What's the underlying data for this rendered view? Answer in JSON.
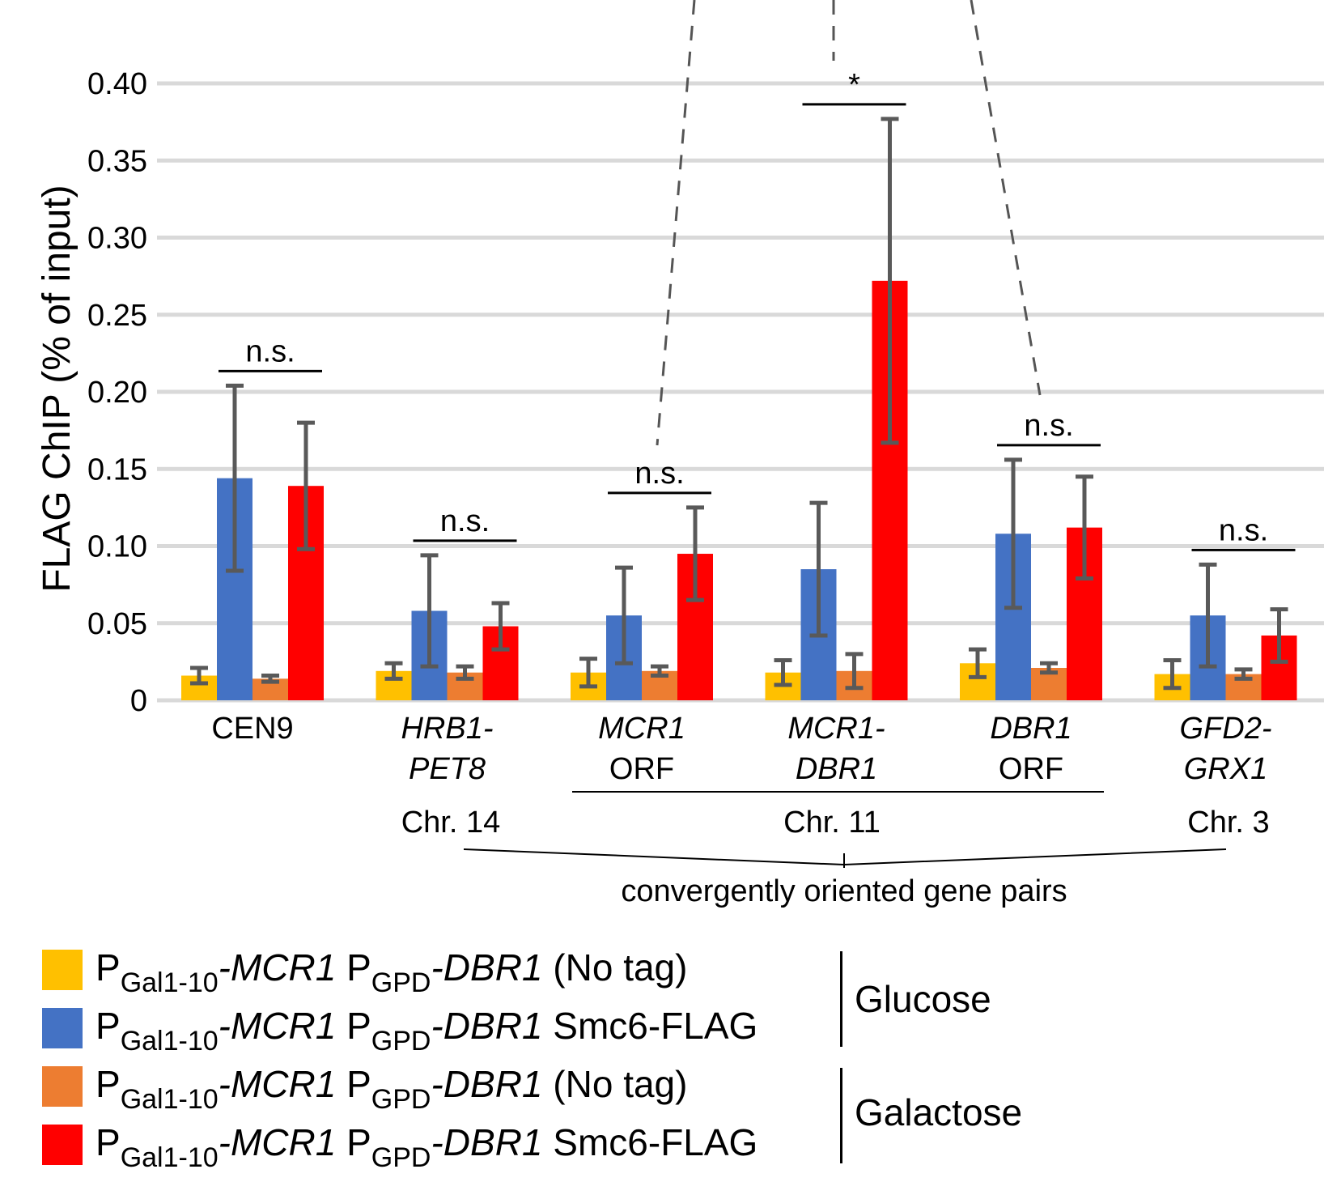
{
  "chart_data": {
    "type": "bar",
    "ylabel": "FLAG ChIP (% of input)",
    "ylim": [
      0,
      0.4
    ],
    "yticks": [
      "0",
      "0.05",
      "0.10",
      "0.15",
      "0.20",
      "0.25",
      "0.30",
      "0.35",
      "0.40"
    ],
    "ytick_values": [
      0,
      0.05,
      0.1,
      0.15,
      0.2,
      0.25,
      0.3,
      0.35,
      0.4
    ],
    "grid": true,
    "categories": [
      {
        "line1": "CEN9",
        "line2": "",
        "italic": false
      },
      {
        "line1": "HRB1-",
        "line2": "PET8",
        "italic": true
      },
      {
        "line1": "MCR1",
        "line2": "ORF",
        "italic": "first"
      },
      {
        "line1": "MCR1-",
        "line2": "DBR1",
        "italic": true
      },
      {
        "line1": "DBR1",
        "line2": "ORF",
        "italic": "first"
      },
      {
        "line1": "GFD2-",
        "line2": "GRX1",
        "italic": true
      }
    ],
    "series": [
      {
        "name": "PGal1-10-MCR1 PGPD-DBR1 (No tag) Glucose",
        "color": "#FFC000",
        "values": [
          0.016,
          0.019,
          0.018,
          0.018,
          0.024,
          0.017
        ],
        "err": [
          0.005,
          0.005,
          0.009,
          0.008,
          0.009,
          0.009
        ]
      },
      {
        "name": "PGal1-10-MCR1 PGPD-DBR1 Smc6-FLAG Glucose",
        "color": "#4472C4",
        "values": [
          0.144,
          0.058,
          0.055,
          0.085,
          0.108,
          0.055
        ],
        "err": [
          0.06,
          0.036,
          0.031,
          0.043,
          0.048,
          0.033
        ]
      },
      {
        "name": "PGal1-10-MCR1 PGPD-DBR1 (No tag) Galactose",
        "color": "#ED7D31",
        "values": [
          0.014,
          0.018,
          0.019,
          0.019,
          0.021,
          0.017
        ],
        "err": [
          0.002,
          0.004,
          0.003,
          0.011,
          0.003,
          0.003
        ]
      },
      {
        "name": "PGal1-10-MCR1 PGPD-DBR1 Smc6-FLAG Galactose",
        "color": "#FF0000",
        "values": [
          0.139,
          0.048,
          0.095,
          0.272,
          0.112,
          0.042
        ],
        "err": [
          0.041,
          0.015,
          0.03,
          0.105,
          0.033,
          0.017
        ]
      }
    ],
    "significance": [
      {
        "category": 0,
        "label": "n.s."
      },
      {
        "category": 1,
        "label": "n.s."
      },
      {
        "category": 2,
        "label": "n.s."
      },
      {
        "category": 3,
        "label": "*"
      },
      {
        "category": 4,
        "label": "n.s."
      },
      {
        "category": 5,
        "label": "n.s."
      }
    ],
    "chromosome_labels": {
      "chr14": "Chr. 14",
      "chr11": "Chr. 11",
      "chr3": "Chr. 3"
    },
    "group_annotation": "convergently oriented gene pairs"
  },
  "legend": {
    "items": [
      {
        "p1": "P",
        "sub1": "Gal1-10",
        "gene1": "-MCR1",
        "p2": " P",
        "sub2": "GPD",
        "gene2": "-DBR1",
        "suffix": " (No tag)",
        "color": "#FFC000"
      },
      {
        "p1": "P",
        "sub1": "Gal1-10",
        "gene1": "-MCR1",
        "p2": " P",
        "sub2": "GPD",
        "gene2": "-DBR1",
        "suffix": " Smc6-FLAG",
        "color": "#4472C4"
      },
      {
        "p1": "P",
        "sub1": "Gal1-10",
        "gene1": "-MCR1",
        "p2": " P",
        "sub2": "GPD",
        "gene2": "-DBR1",
        "suffix": " (No tag)",
        "color": "#ED7D31"
      },
      {
        "p1": "P",
        "sub1": "Gal1-10",
        "gene1": "-MCR1",
        "p2": " P",
        "sub2": "GPD",
        "gene2": "-DBR1",
        "suffix": " Smc6-FLAG",
        "color": "#FF0000"
      }
    ],
    "groups": [
      {
        "label": "Glucose"
      },
      {
        "label": "Galactose"
      }
    ]
  }
}
